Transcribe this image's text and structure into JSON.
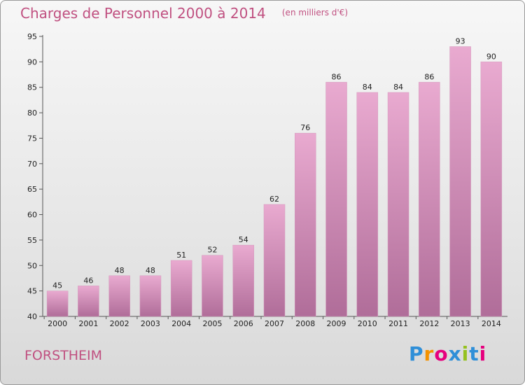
{
  "title": "Charges de Personnel 2000 à 2014",
  "subtitle": "(en milliers d'€)",
  "place": "FORSTHEIM",
  "logo": {
    "letters": [
      "P",
      "r",
      "o",
      "x",
      "i",
      "t",
      "i"
    ],
    "colors": [
      "#2f8fd8",
      "#f39200",
      "#e6007e",
      "#2f8fd8",
      "#95c11f",
      "#2f8fd8",
      "#e6007e"
    ]
  },
  "colors": {
    "title": "#c05080",
    "bar_light": "#e9aad0",
    "bar_dark": "#b06d99"
  },
  "chart_data": {
    "type": "bar",
    "title": "Charges de Personnel 2000 à 2014",
    "subtitle": "(en milliers d'€)",
    "xlabel": "",
    "ylabel": "",
    "categories": [
      "2000",
      "2001",
      "2002",
      "2003",
      "2004",
      "2005",
      "2006",
      "2007",
      "2008",
      "2009",
      "2010",
      "2011",
      "2012",
      "2013",
      "2014"
    ],
    "values": [
      45,
      46,
      48,
      48,
      51,
      52,
      54,
      62,
      76,
      86,
      84,
      84,
      86,
      93,
      90
    ],
    "ylim": [
      40,
      95
    ],
    "yticks": [
      40,
      45,
      50,
      55,
      60,
      65,
      70,
      75,
      80,
      85,
      90,
      95
    ],
    "grid": false
  }
}
